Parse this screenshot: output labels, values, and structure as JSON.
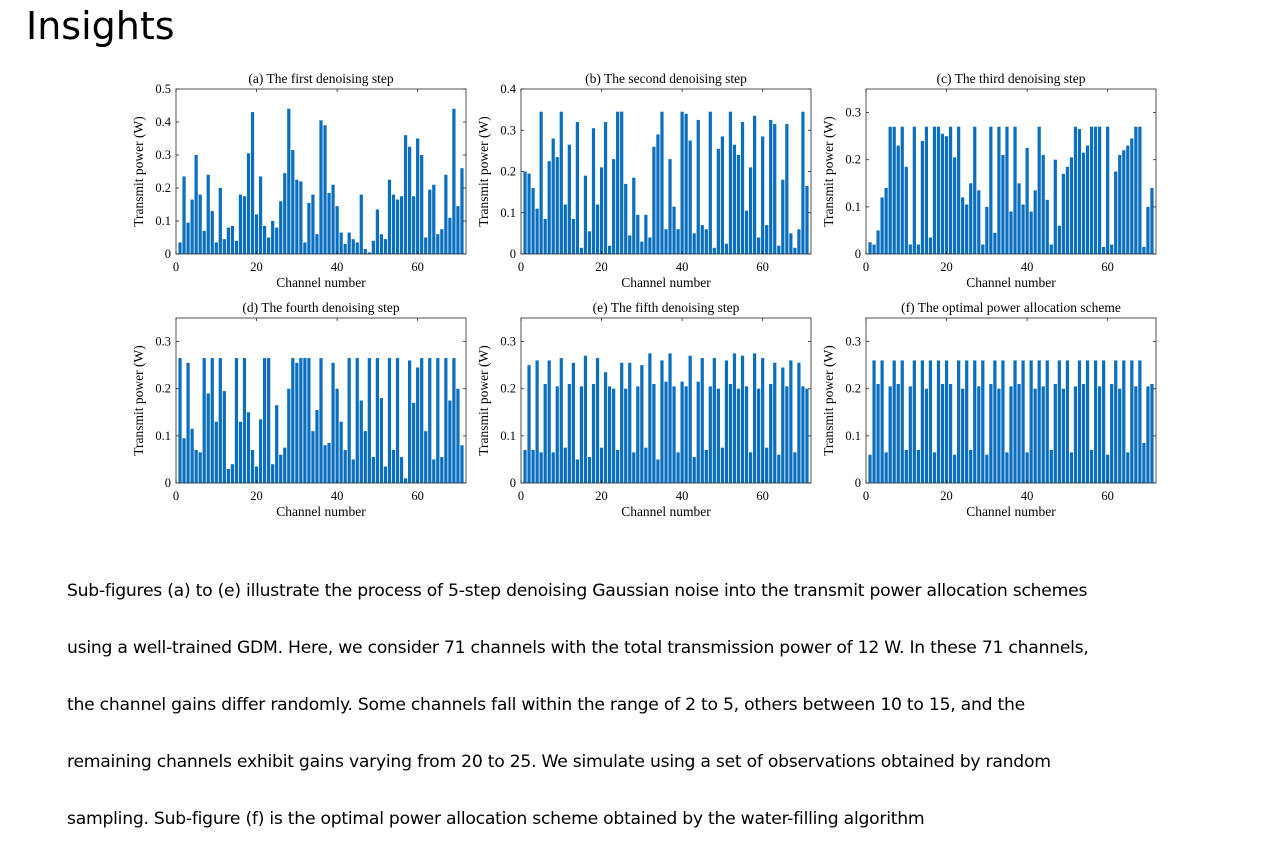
{
  "slide": {
    "title": "Insights",
    "caption_lines": [
      "Sub-figures (a) to (e) illustrate the process of 5-step denoising Gaussian noise into the transmit power allocation schemes",
      "using a well-trained GDM. Here, we consider 71 channels with the total transmission power of 12 W. In these 71 channels,",
      "the channel gains differ randomly. Some channels fall within the range of 2 to 5, others between 10 to 15, and the",
      "remaining channels exhibit gains varying from 20 to 25. We simulate using a set of observations obtained by random",
      "sampling. Sub-figure (f) is the optimal power allocation scheme obtained by the water-filling algorithm"
    ]
  },
  "chart_data": [
    {
      "type": "bar",
      "title": "(a) The first denoising step",
      "xlabel": "Channel number",
      "ylabel": "Transmit power (W)",
      "xlim": [
        0,
        72
      ],
      "ylim": [
        0,
        0.5
      ],
      "xticks": [
        "0",
        "20",
        "40",
        "60"
      ],
      "yticks": [
        "0",
        "0.1",
        "0.2",
        "0.3",
        "0.4",
        "0.5"
      ],
      "ytick_values": [
        0,
        0.1,
        0.2,
        0.3,
        0.4,
        0.5
      ],
      "x": [
        1,
        2,
        3,
        4,
        5,
        6,
        7,
        8,
        9,
        10,
        11,
        12,
        13,
        14,
        15,
        16,
        17,
        18,
        19,
        20,
        21,
        22,
        23,
        24,
        25,
        26,
        27,
        28,
        29,
        30,
        31,
        32,
        33,
        34,
        35,
        36,
        37,
        38,
        39,
        40,
        41,
        42,
        43,
        44,
        45,
        46,
        47,
        48,
        49,
        50,
        51,
        52,
        53,
        54,
        55,
        56,
        57,
        58,
        59,
        60,
        61,
        62,
        63,
        64,
        65,
        66,
        67,
        68,
        69,
        70,
        71
      ],
      "values": [
        0.035,
        0.235,
        0.095,
        0.165,
        0.3,
        0.18,
        0.07,
        0.24,
        0.13,
        0.035,
        0.2,
        0.045,
        0.08,
        0.085,
        0.04,
        0.18,
        0.175,
        0.305,
        0.43,
        0.12,
        0.235,
        0.085,
        0.05,
        0.1,
        0.08,
        0.16,
        0.245,
        0.44,
        0.315,
        0.225,
        0.22,
        0.035,
        0.155,
        0.18,
        0.06,
        0.405,
        0.39,
        0.185,
        0.21,
        0.145,
        0.065,
        0.03,
        0.065,
        0.045,
        0.035,
        0.18,
        0.015,
        0.005,
        0.04,
        0.135,
        0.06,
        0.045,
        0.225,
        0.18,
        0.165,
        0.175,
        0.36,
        0.325,
        0.175,
        0.35,
        0.3,
        0.05,
        0.195,
        0.21,
        0.06,
        0.075,
        0.24,
        0.11,
        0.44,
        0.145,
        0.26
      ],
      "color": "#0a6fbf"
    },
    {
      "type": "bar",
      "title": "(b) The second denoising step",
      "xlabel": "Channel number",
      "ylabel": "Transmit power (W)",
      "xlim": [
        0,
        72
      ],
      "ylim": [
        0,
        0.4
      ],
      "xticks": [
        "0",
        "20",
        "40",
        "60"
      ],
      "yticks": [
        "0",
        "0.1",
        "0.2",
        "0.3",
        "0.4"
      ],
      "ytick_values": [
        0,
        0.1,
        0.2,
        0.3,
        0.4
      ],
      "x": [
        1,
        2,
        3,
        4,
        5,
        6,
        7,
        8,
        9,
        10,
        11,
        12,
        13,
        14,
        15,
        16,
        17,
        18,
        19,
        20,
        21,
        22,
        23,
        24,
        25,
        26,
        27,
        28,
        29,
        30,
        31,
        32,
        33,
        34,
        35,
        36,
        37,
        38,
        39,
        40,
        41,
        42,
        43,
        44,
        45,
        46,
        47,
        48,
        49,
        50,
        51,
        52,
        53,
        54,
        55,
        56,
        57,
        58,
        59,
        60,
        61,
        62,
        63,
        64,
        65,
        66,
        67,
        68,
        69,
        70,
        71
      ],
      "values": [
        0.2,
        0.195,
        0.16,
        0.11,
        0.345,
        0.085,
        0.225,
        0.28,
        0.235,
        0.345,
        0.12,
        0.265,
        0.085,
        0.32,
        0.015,
        0.19,
        0.055,
        0.305,
        0.12,
        0.21,
        0.32,
        0.02,
        0.23,
        0.345,
        0.345,
        0.17,
        0.045,
        0.185,
        0.095,
        0.03,
        0.095,
        0.04,
        0.26,
        0.29,
        0.345,
        0.06,
        0.23,
        0.115,
        0.06,
        0.345,
        0.34,
        0.275,
        0.05,
        0.325,
        0.07,
        0.06,
        0.345,
        0.015,
        0.255,
        0.285,
        0.025,
        0.345,
        0.265,
        0.24,
        0.32,
        0.105,
        0.21,
        0.335,
        0.04,
        0.285,
        0.07,
        0.325,
        0.315,
        0.02,
        0.18,
        0.315,
        0.05,
        0.015,
        0.06,
        0.345,
        0.165
      ],
      "color": "#0a6fbf"
    },
    {
      "type": "bar",
      "title": "(c) The third denoising step",
      "xlabel": "Channel number",
      "ylabel": "Transmit power (W)",
      "xlim": [
        0,
        72
      ],
      "ylim": [
        0,
        0.35
      ],
      "xticks": [
        "0",
        "20",
        "40",
        "60"
      ],
      "yticks": [
        "0",
        "0.1",
        "0.2",
        "0.3"
      ],
      "ytick_values": [
        0,
        0.1,
        0.2,
        0.3
      ],
      "x": [
        1,
        2,
        3,
        4,
        5,
        6,
        7,
        8,
        9,
        10,
        11,
        12,
        13,
        14,
        15,
        16,
        17,
        18,
        19,
        20,
        21,
        22,
        23,
        24,
        25,
        26,
        27,
        28,
        29,
        30,
        31,
        32,
        33,
        34,
        35,
        36,
        37,
        38,
        39,
        40,
        41,
        42,
        43,
        44,
        45,
        46,
        47,
        48,
        49,
        50,
        51,
        52,
        53,
        54,
        55,
        56,
        57,
        58,
        59,
        60,
        61,
        62,
        63,
        64,
        65,
        66,
        67,
        68,
        69,
        70,
        71
      ],
      "values": [
        0.025,
        0.02,
        0.05,
        0.12,
        0.14,
        0.27,
        0.27,
        0.23,
        0.27,
        0.185,
        0.02,
        0.27,
        0.02,
        0.24,
        0.27,
        0.035,
        0.27,
        0.27,
        0.255,
        0.25,
        0.27,
        0.205,
        0.27,
        0.12,
        0.105,
        0.15,
        0.27,
        0.135,
        0.02,
        0.1,
        0.27,
        0.045,
        0.27,
        0.21,
        0.27,
        0.09,
        0.27,
        0.15,
        0.105,
        0.225,
        0.09,
        0.135,
        0.27,
        0.21,
        0.115,
        0.02,
        0.2,
        0.06,
        0.17,
        0.185,
        0.205,
        0.27,
        0.265,
        0.215,
        0.23,
        0.27,
        0.27,
        0.27,
        0.015,
        0.27,
        0.02,
        0.175,
        0.21,
        0.22,
        0.23,
        0.245,
        0.27,
        0.27,
        0.015,
        0.1,
        0.14
      ],
      "color": "#0a6fbf"
    },
    {
      "type": "bar",
      "title": "(d) The fourth denoising step",
      "xlabel": "Channel number",
      "ylabel": "Transmit power (W)",
      "xlim": [
        0,
        72
      ],
      "ylim": [
        0,
        0.35
      ],
      "xticks": [
        "0",
        "20",
        "40",
        "60"
      ],
      "yticks": [
        "0",
        "0.1",
        "0.2",
        "0.3"
      ],
      "ytick_values": [
        0,
        0.1,
        0.2,
        0.3
      ],
      "x": [
        1,
        2,
        3,
        4,
        5,
        6,
        7,
        8,
        9,
        10,
        11,
        12,
        13,
        14,
        15,
        16,
        17,
        18,
        19,
        20,
        21,
        22,
        23,
        24,
        25,
        26,
        27,
        28,
        29,
        30,
        31,
        32,
        33,
        34,
        35,
        36,
        37,
        38,
        39,
        40,
        41,
        42,
        43,
        44,
        45,
        46,
        47,
        48,
        49,
        50,
        51,
        52,
        53,
        54,
        55,
        56,
        57,
        58,
        59,
        60,
        61,
        62,
        63,
        64,
        65,
        66,
        67,
        68,
        69,
        70,
        71
      ],
      "values": [
        0.265,
        0.095,
        0.255,
        0.115,
        0.07,
        0.065,
        0.265,
        0.19,
        0.265,
        0.13,
        0.265,
        0.195,
        0.03,
        0.04,
        0.265,
        0.13,
        0.265,
        0.15,
        0.07,
        0.035,
        0.135,
        0.265,
        0.265,
        0.04,
        0.165,
        0.06,
        0.075,
        0.2,
        0.265,
        0.255,
        0.265,
        0.265,
        0.265,
        0.11,
        0.155,
        0.265,
        0.08,
        0.085,
        0.255,
        0.2,
        0.13,
        0.07,
        0.265,
        0.05,
        0.265,
        0.175,
        0.11,
        0.265,
        0.055,
        0.265,
        0.18,
        0.035,
        0.265,
        0.07,
        0.265,
        0.055,
        0.01,
        0.26,
        0.17,
        0.245,
        0.265,
        0.11,
        0.265,
        0.05,
        0.265,
        0.055,
        0.265,
        0.175,
        0.265,
        0.2,
        0.08
      ],
      "color": "#0a6fbf"
    },
    {
      "type": "bar",
      "title": "(e) The fifth denoising step",
      "xlabel": "Channel number",
      "ylabel": "Transmit power (W)",
      "xlim": [
        0,
        72
      ],
      "ylim": [
        0,
        0.35
      ],
      "xticks": [
        "0",
        "20",
        "40",
        "60"
      ],
      "yticks": [
        "0",
        "0.1",
        "0.2",
        "0.3"
      ],
      "ytick_values": [
        0,
        0.1,
        0.2,
        0.3
      ],
      "x": [
        1,
        2,
        3,
        4,
        5,
        6,
        7,
        8,
        9,
        10,
        11,
        12,
        13,
        14,
        15,
        16,
        17,
        18,
        19,
        20,
        21,
        22,
        23,
        24,
        25,
        26,
        27,
        28,
        29,
        30,
        31,
        32,
        33,
        34,
        35,
        36,
        37,
        38,
        39,
        40,
        41,
        42,
        43,
        44,
        45,
        46,
        47,
        48,
        49,
        50,
        51,
        52,
        53,
        54,
        55,
        56,
        57,
        58,
        59,
        60,
        61,
        62,
        63,
        64,
        65,
        66,
        67,
        68,
        69,
        70,
        71
      ],
      "values": [
        0.07,
        0.25,
        0.07,
        0.26,
        0.065,
        0.21,
        0.26,
        0.065,
        0.205,
        0.265,
        0.075,
        0.21,
        0.255,
        0.05,
        0.205,
        0.27,
        0.055,
        0.21,
        0.265,
        0.075,
        0.235,
        0.205,
        0.2,
        0.07,
        0.255,
        0.2,
        0.255,
        0.065,
        0.205,
        0.25,
        0.075,
        0.275,
        0.21,
        0.05,
        0.26,
        0.215,
        0.275,
        0.205,
        0.065,
        0.215,
        0.205,
        0.27,
        0.055,
        0.215,
        0.265,
        0.07,
        0.205,
        0.265,
        0.2,
        0.075,
        0.26,
        0.21,
        0.275,
        0.2,
        0.27,
        0.205,
        0.065,
        0.275,
        0.2,
        0.265,
        0.075,
        0.21,
        0.255,
        0.06,
        0.245,
        0.205,
        0.26,
        0.065,
        0.255,
        0.205,
        0.2
      ],
      "color": "#0a6fbf"
    },
    {
      "type": "bar",
      "title": "(f) The optimal power allocation scheme",
      "xlabel": "Channel number",
      "ylabel": "Transmit power (W)",
      "xlim": [
        0,
        72
      ],
      "ylim": [
        0,
        0.35
      ],
      "xticks": [
        "0",
        "20",
        "40",
        "60"
      ],
      "yticks": [
        "0",
        "0.1",
        "0.2",
        "0.3"
      ],
      "ytick_values": [
        0,
        0.1,
        0.2,
        0.3
      ],
      "x": [
        1,
        2,
        3,
        4,
        5,
        6,
        7,
        8,
        9,
        10,
        11,
        12,
        13,
        14,
        15,
        16,
        17,
        18,
        19,
        20,
        21,
        22,
        23,
        24,
        25,
        26,
        27,
        28,
        29,
        30,
        31,
        32,
        33,
        34,
        35,
        36,
        37,
        38,
        39,
        40,
        41,
        42,
        43,
        44,
        45,
        46,
        47,
        48,
        49,
        50,
        51,
        52,
        53,
        54,
        55,
        56,
        57,
        58,
        59,
        60,
        61,
        62,
        63,
        64,
        65,
        66,
        67,
        68,
        69,
        70,
        71
      ],
      "values": [
        0.06,
        0.26,
        0.21,
        0.26,
        0.065,
        0.205,
        0.26,
        0.21,
        0.26,
        0.07,
        0.205,
        0.26,
        0.07,
        0.26,
        0.2,
        0.26,
        0.065,
        0.26,
        0.21,
        0.26,
        0.21,
        0.06,
        0.26,
        0.2,
        0.26,
        0.07,
        0.26,
        0.205,
        0.26,
        0.06,
        0.21,
        0.26,
        0.2,
        0.26,
        0.065,
        0.205,
        0.26,
        0.21,
        0.26,
        0.065,
        0.26,
        0.2,
        0.26,
        0.205,
        0.26,
        0.07,
        0.21,
        0.26,
        0.2,
        0.26,
        0.065,
        0.205,
        0.26,
        0.21,
        0.26,
        0.07,
        0.26,
        0.205,
        0.26,
        0.06,
        0.21,
        0.26,
        0.2,
        0.26,
        0.065,
        0.26,
        0.205,
        0.26,
        0.085,
        0.205,
        0.21
      ],
      "color": "#0a6fbf"
    }
  ]
}
